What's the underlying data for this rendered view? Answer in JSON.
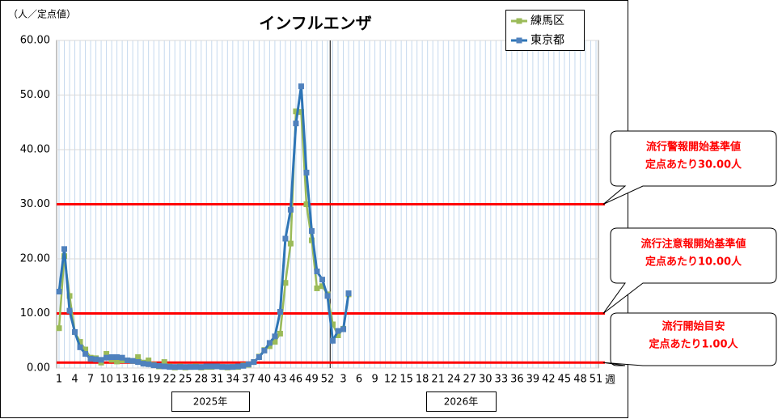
{
  "chart_data": {
    "type": "line",
    "title": "インフルエンザ",
    "y_label": "（人／定点値）",
    "x_label": "週",
    "year_labels": [
      "2025年",
      "2026年"
    ],
    "categories": [
      "1",
      null,
      null,
      "4",
      null,
      null,
      "7",
      null,
      null,
      "10",
      null,
      null,
      "13",
      null,
      null,
      "16",
      null,
      null,
      "19",
      null,
      null,
      "22",
      null,
      null,
      "25",
      null,
      null,
      "28",
      null,
      null,
      "31",
      null,
      null,
      "34",
      null,
      null,
      "37",
      null,
      null,
      "40",
      null,
      null,
      "43",
      null,
      null,
      "46",
      null,
      null,
      "49",
      null,
      null,
      "52",
      null,
      null,
      "3",
      null,
      null,
      "6",
      null,
      null,
      "9",
      null,
      null,
      "12",
      null,
      null,
      "15",
      null,
      null,
      "18",
      null,
      null,
      "21",
      null,
      null,
      "24",
      null,
      null,
      "27",
      null,
      null,
      "30",
      null,
      null,
      "33",
      null,
      null,
      "36",
      null,
      null,
      "39",
      null,
      null,
      "42",
      null,
      null,
      "45",
      null,
      null,
      "48",
      null,
      null,
      "51"
    ],
    "series": [
      {
        "name": "練馬区",
        "color": "#9bbb59",
        "values": [
          7.3,
          20.5,
          13.2,
          6.6,
          4.8,
          3.4,
          1.9,
          1.8,
          1.0,
          2.6,
          1.5,
          1.2,
          1.4,
          1.4,
          1.3,
          2.0,
          1.0,
          1.4,
          0.6,
          0.3,
          1.1,
          0.3,
          0.1,
          0.3,
          0.1,
          0.2,
          0.3,
          0.1,
          0.2,
          0.2,
          0.3,
          0.2,
          0.1,
          0.2,
          0.2,
          0.5,
          0.6,
          1.1,
          2.1,
          3.3,
          4.0,
          4.8,
          6.3,
          15.6,
          22.8,
          47.0,
          46.9,
          30.0,
          23.4,
          14.6,
          15.0,
          13.5,
          8.0,
          6.0,
          7.2,
          13.5,
          null,
          null,
          null,
          null,
          null,
          null,
          null,
          null,
          null,
          null,
          null,
          null,
          null,
          null,
          null,
          null,
          null,
          null,
          null,
          null,
          null,
          null,
          null,
          null,
          null,
          null,
          null,
          null,
          null,
          null,
          null,
          null,
          null,
          null,
          null,
          null,
          null,
          null,
          null,
          null,
          null,
          null,
          null,
          null,
          null,
          null,
          null
        ]
      },
      {
        "name": "東京都",
        "color": "#2e75b6",
        "values": [
          14.0,
          21.8,
          10.5,
          6.6,
          3.8,
          2.6,
          1.7,
          1.6,
          1.5,
          1.9,
          2.0,
          2.0,
          1.9,
          1.4,
          1.3,
          1.1,
          0.8,
          0.7,
          0.5,
          0.4,
          0.3,
          0.2,
          0.2,
          0.2,
          0.2,
          0.2,
          0.2,
          0.2,
          0.3,
          0.3,
          0.3,
          0.2,
          0.2,
          0.2,
          0.3,
          0.4,
          0.7,
          1.1,
          2.0,
          3.2,
          4.6,
          5.8,
          10.3,
          23.7,
          29.0,
          44.8,
          51.6,
          35.8,
          25.1,
          17.7,
          16.2,
          13.2,
          5.0,
          6.8,
          7.1,
          13.7,
          null,
          null,
          null,
          null,
          null,
          null,
          null,
          null,
          null,
          null,
          null,
          null,
          null,
          null,
          null,
          null,
          null,
          null,
          null,
          null,
          null,
          null,
          null,
          null,
          null,
          null,
          null,
          null,
          null,
          null,
          null,
          null,
          null,
          null,
          null,
          null,
          null,
          null,
          null,
          null,
          null,
          null,
          null,
          null,
          null,
          null,
          null
        ]
      }
    ],
    "ylim": [
      0,
      60
    ],
    "yticks": [
      {
        "value": 0,
        "label": "0.00"
      },
      {
        "value": 10,
        "label": "10.00"
      },
      {
        "value": 20,
        "label": "20.00"
      },
      {
        "value": 30,
        "label": "30.00"
      },
      {
        "value": 40,
        "label": "40.00"
      },
      {
        "value": 50,
        "label": "50.00"
      },
      {
        "value": 60,
        "label": "60.00"
      }
    ],
    "grid": true,
    "legend": "top-right",
    "thresholds": [
      {
        "value": 30,
        "color": "#ff0000",
        "text": [
          "流行警報開始基準値",
          "定点あたり30.00人"
        ]
      },
      {
        "value": 10,
        "color": "#ff0000",
        "text": [
          "流行注意報開始基準値",
          "定点あたり10.00人"
        ]
      },
      {
        "value": 1,
        "color": "#ff0000",
        "text": [
          "流行開始目安",
          "定点あたり1.00人"
        ]
      }
    ]
  }
}
